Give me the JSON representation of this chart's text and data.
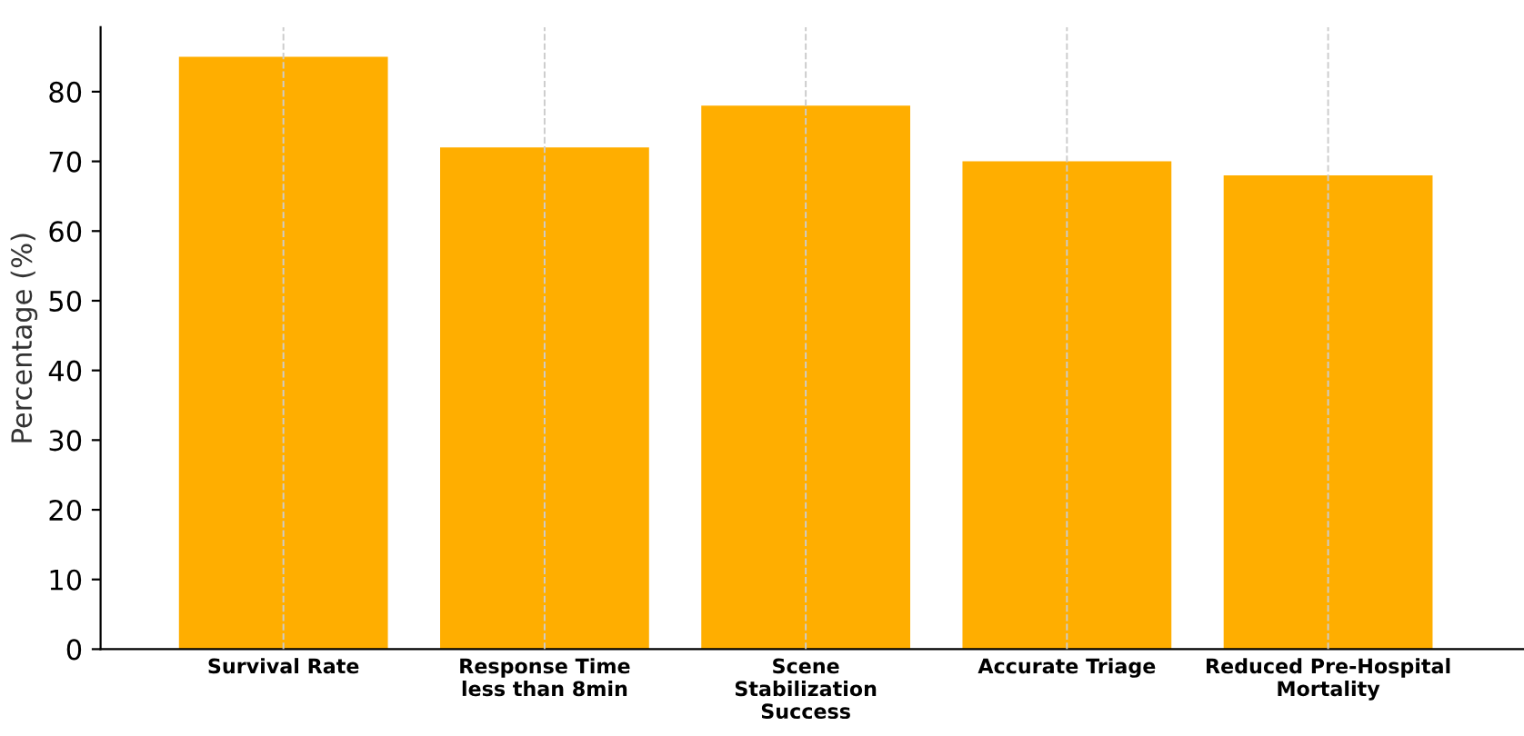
{
  "chart_data": {
    "type": "bar",
    "ylabel": "Percentage (%)",
    "categories": [
      "Survival Rate",
      "Response Time\nless than 8min",
      "Scene\nStabilization\nSuccess",
      "Accurate Triage",
      "Reduced Pre-Hospital\nMortality"
    ],
    "values": [
      85,
      72,
      78,
      70,
      68
    ],
    "color": "#ffae00",
    "ylim": [
      0,
      89.25
    ],
    "yticks": [
      0,
      10,
      20,
      30,
      40,
      50,
      60,
      70,
      80
    ],
    "grid": "x",
    "legend": false
  }
}
